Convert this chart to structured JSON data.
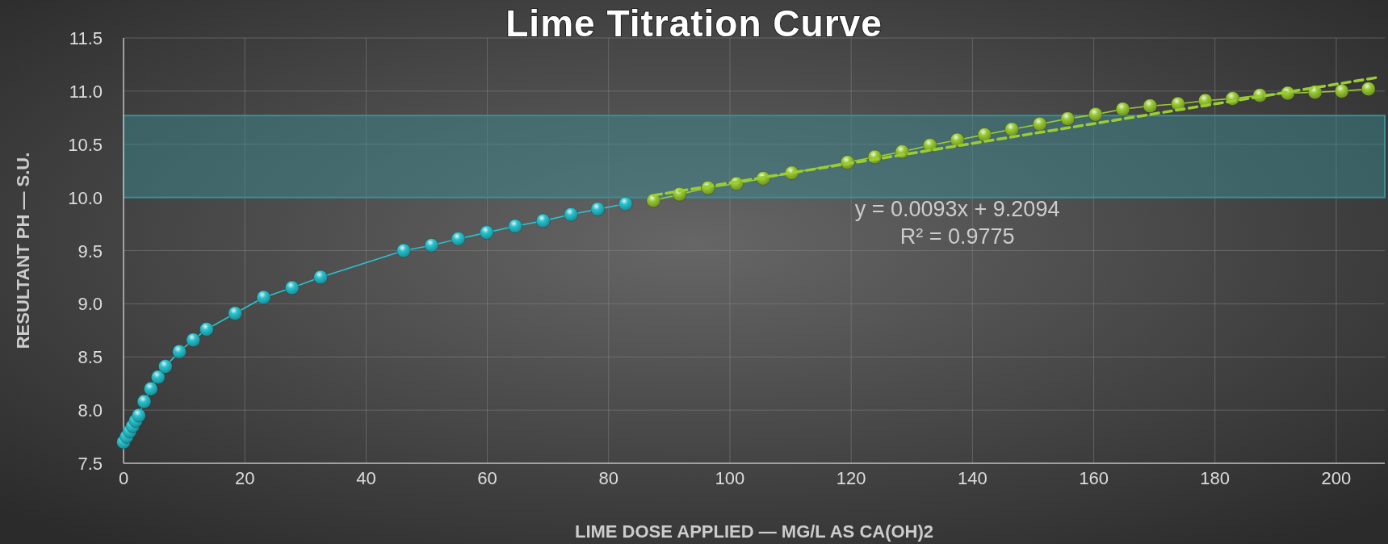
{
  "chart_data": {
    "type": "line",
    "title": "Lime Titration Curve",
    "xlabel": "LIME DOSE APPLIED — MG/L AS CA(OH)2",
    "ylabel": "RESULTANT PH — S.U.",
    "xlim": [
      0,
      208
    ],
    "xticks": [
      0,
      20,
      40,
      60,
      80,
      100,
      120,
      140,
      160,
      180,
      200
    ],
    "ylim": [
      7.5,
      11.5
    ],
    "yticks": [
      {
        "value": 7.5,
        "label": "7.5"
      },
      {
        "value": 8,
        "label": "8.0"
      },
      {
        "value": 8.5,
        "label": "8.5"
      },
      {
        "value": 9,
        "label": "9.0"
      },
      {
        "value": 9.5,
        "label": "9.5"
      },
      {
        "value": 10,
        "label": "10.0"
      },
      {
        "value": 10.5,
        "label": "10.5"
      },
      {
        "value": 11,
        "label": "11.0"
      },
      {
        "value": 11.5,
        "label": "11.5"
      }
    ],
    "grid": true,
    "marker": "circle",
    "bands": [
      {
        "axis": "y",
        "from": 10,
        "to": 10.77,
        "color": "#3a8f95"
      }
    ],
    "annotations": [
      "y = 0.0093x + 9.2094",
      "R² = 0.9775"
    ],
    "series": [
      {
        "color": "#27c4d0",
        "x": [
          0,
          0.5,
          1,
          1.5,
          2,
          2.5,
          3.4,
          4.5,
          5.7,
          6.9,
          9.2,
          11.5,
          13.7,
          18.4,
          23.1,
          27.8,
          32.5,
          46.2,
          50.8,
          55.2,
          59.9,
          64.6,
          69.2,
          73.8,
          78.2,
          82.8
        ],
        "values": [
          7.7,
          7.75,
          7.8,
          7.85,
          7.9,
          7.95,
          8.08,
          8.2,
          8.31,
          8.41,
          8.55,
          8.66,
          8.76,
          8.91,
          9.06,
          9.15,
          9.25,
          9.5,
          9.55,
          9.61,
          9.67,
          9.73,
          9.78,
          9.84,
          9.89,
          9.94
        ]
      },
      {
        "color": "#9acd32",
        "x": [
          87.4,
          91.7,
          96.4,
          101.1,
          105.5,
          110.2,
          119.4,
          123.9,
          128.4,
          133,
          137.5,
          142,
          146.5,
          151.1,
          155.7,
          160.3,
          164.8,
          169.3,
          173.9,
          178.4,
          182.9,
          187.4,
          192,
          196.5,
          200.9,
          205.3
        ],
        "values": [
          9.97,
          10.03,
          10.09,
          10.13,
          10.18,
          10.23,
          10.33,
          10.38,
          10.43,
          10.49,
          10.54,
          10.59,
          10.64,
          10.69,
          10.74,
          10.78,
          10.83,
          10.86,
          10.88,
          10.91,
          10.93,
          10.96,
          10.98,
          10.99,
          11,
          11.02
        ]
      },
      {
        "type": "line",
        "color": "#9acd32",
        "line_style": "dashed",
        "marker": "none",
        "x": [
          87.4,
          207
        ],
        "values": [
          10.02,
          11.13
        ]
      }
    ]
  }
}
